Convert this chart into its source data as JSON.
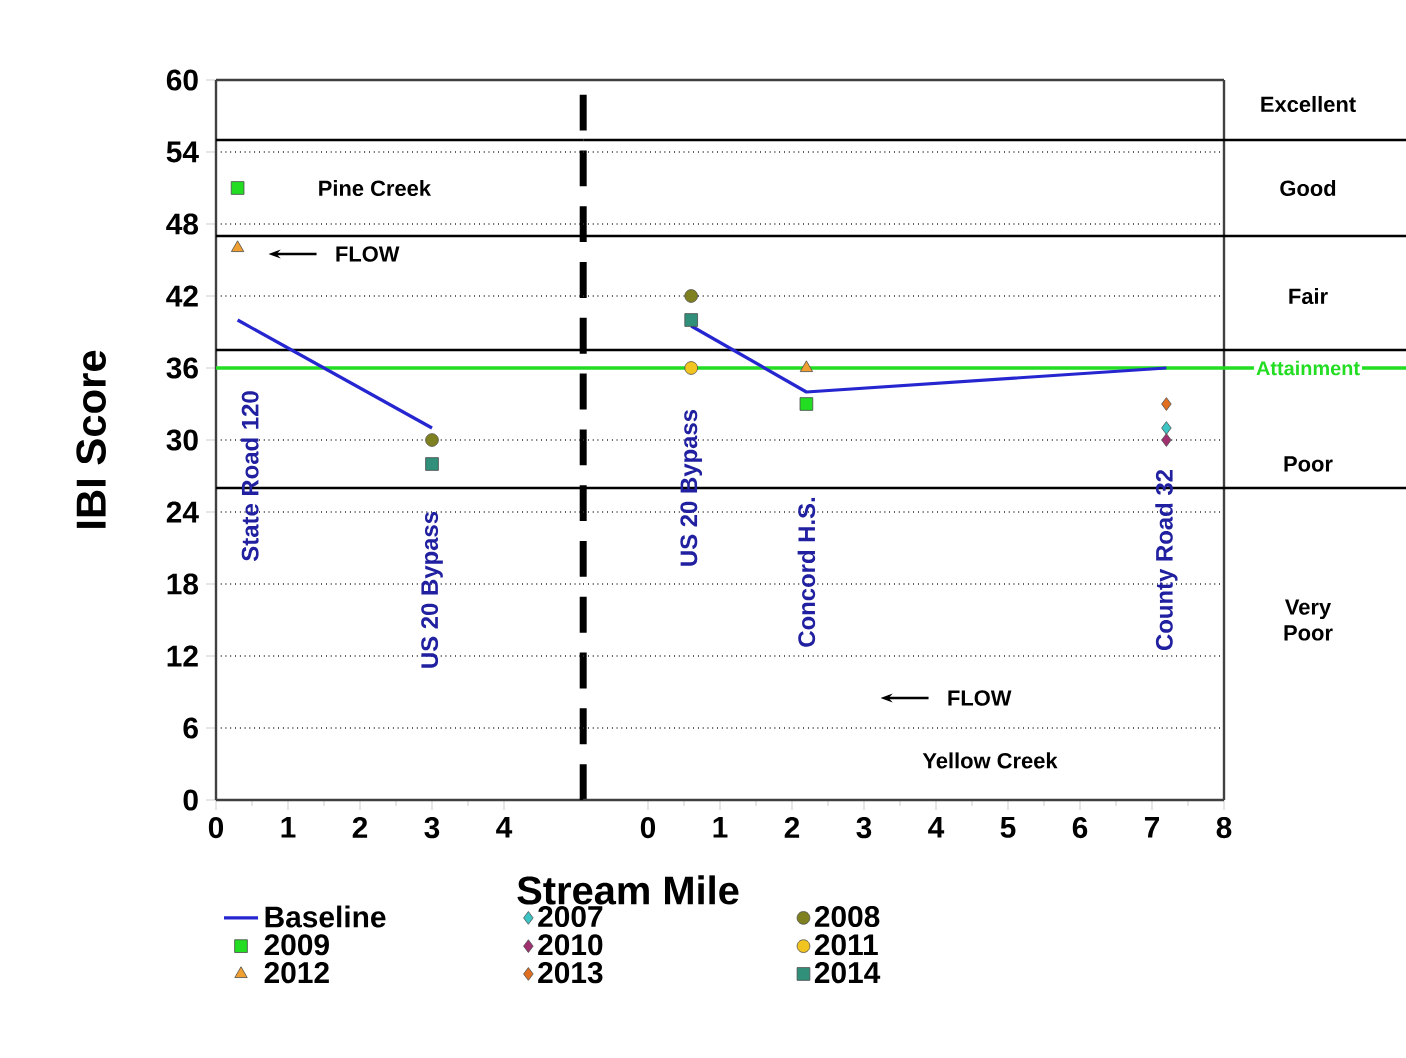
{
  "chart_data": [
    {
      "type": "scatter",
      "ylabel": "IBI Score",
      "xlim": [
        0,
        5.1
      ],
      "ylim": [
        0,
        60
      ],
      "xticks": [
        0,
        1,
        2,
        3,
        4
      ],
      "yticks": [
        0,
        6,
        12,
        18,
        24,
        30,
        36,
        42,
        48,
        54,
        60
      ],
      "grid": "y",
      "series": [
        {
          "type": "line",
          "color": "#2626d0",
          "marker": "none",
          "line_style": "solid",
          "x": [
            0.3,
            3
          ],
          "values": [
            40,
            31
          ]
        },
        {
          "color": "#7f8020",
          "marker": "circle",
          "x": [
            3
          ],
          "values": [
            30
          ]
        },
        {
          "color": "#22dd22",
          "marker": "square",
          "x": [
            0.3
          ],
          "values": [
            51
          ]
        },
        {
          "color": "#f0a030",
          "marker": "triangle",
          "x": [
            0.3
          ],
          "values": [
            46
          ]
        },
        {
          "color": "#30907a",
          "marker": "square",
          "x": [
            3
          ],
          "values": [
            28
          ]
        }
      ],
      "ref_lines": [
        {
          "axis": "y",
          "value": 55,
          "color": "#000000",
          "line_style": "solid"
        },
        {
          "axis": "y",
          "value": 47,
          "color": "#000000",
          "line_style": "solid"
        },
        {
          "axis": "y",
          "value": 37.5,
          "color": "#000000",
          "line_style": "solid"
        },
        {
          "axis": "y",
          "value": 26,
          "color": "#000000",
          "line_style": "solid"
        },
        {
          "axis": "y",
          "value": 36,
          "color": "#22dd22",
          "line_style": "solid"
        },
        {
          "axis": "x",
          "value": 5.1,
          "color": "#000000",
          "line_style": "dashed"
        }
      ],
      "annotations": [
        "State Road 120",
        "US 20 Bypass",
        "Pine Creek",
        "FLOW"
      ]
    },
    {
      "type": "scatter",
      "xlabel": "Stream Mile",
      "xlim": [
        -0.9,
        8
      ],
      "ylim": [
        0,
        60
      ],
      "xticks": [
        0,
        1,
        2,
        3,
        4,
        5,
        6,
        7,
        8
      ],
      "yticks": [
        0,
        6,
        12,
        18,
        24,
        30,
        36,
        42,
        48,
        54,
        60
      ],
      "tick_labels": "x",
      "grid": "y",
      "legend": "bottom",
      "series": [
        {
          "name": "Baseline",
          "type": "line",
          "color": "#2626d0",
          "marker": "none",
          "line_style": "solid",
          "x": [
            0.6,
            2.2,
            7.2
          ],
          "values": [
            39.5,
            34,
            36
          ]
        },
        {
          "name": "2007",
          "color": "#3cc4c4",
          "marker": "diamond",
          "x": [
            7.2
          ],
          "values": [
            31
          ]
        },
        {
          "name": "2008",
          "color": "#7f8020",
          "marker": "circle",
          "x": [
            0.6
          ],
          "values": [
            42
          ]
        },
        {
          "name": "2009",
          "color": "#22dd22",
          "marker": "square",
          "x": [
            2.2
          ],
          "values": [
            33
          ]
        },
        {
          "name": "2010",
          "color": "#a03070",
          "marker": "diamond",
          "x": [
            7.2
          ],
          "values": [
            30
          ]
        },
        {
          "name": "2011",
          "color": "#f2c420",
          "marker": "circle",
          "x": [
            0.6
          ],
          "values": [
            36
          ]
        },
        {
          "name": "2012",
          "color": "#f0a030",
          "marker": "triangle",
          "x": [
            2.2
          ],
          "values": [
            36
          ]
        },
        {
          "name": "2013",
          "color": "#e07020",
          "marker": "diamond",
          "x": [
            7.2
          ],
          "values": [
            33
          ]
        },
        {
          "name": "2014",
          "color": "#30907a",
          "marker": "square",
          "x": [
            0.6
          ],
          "values": [
            40
          ]
        }
      ],
      "ref_lines": [
        {
          "axis": "y",
          "value": 55,
          "color": "#000000",
          "line_style": "solid"
        },
        {
          "axis": "y",
          "value": 47,
          "color": "#000000",
          "line_style": "solid"
        },
        {
          "axis": "y",
          "value": 37.5,
          "color": "#000000",
          "line_style": "solid"
        },
        {
          "axis": "y",
          "value": 26,
          "color": "#000000",
          "line_style": "solid"
        },
        {
          "axis": "y",
          "value": 36,
          "label": "Attainment",
          "color": "#22dd22",
          "line_style": "solid"
        }
      ],
      "annotations": [
        "US 20 Bypass",
        "Concord H.S.",
        "County Road 32",
        "FLOW",
        "Yellow Creek",
        "Excellent",
        "Good",
        "Fair",
        "Poor",
        "Very Poor"
      ]
    }
  ]
}
